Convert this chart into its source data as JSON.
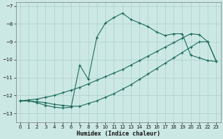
{
  "xlabel": "Humidex (Indice chaleur)",
  "xlim": [
    -0.5,
    23.5
  ],
  "ylim": [
    -13.5,
    -6.8
  ],
  "yticks": [
    -13,
    -12,
    -11,
    -10,
    -9,
    -8,
    -7
  ],
  "xticks": [
    0,
    1,
    2,
    3,
    4,
    5,
    6,
    7,
    8,
    9,
    10,
    11,
    12,
    13,
    14,
    15,
    16,
    17,
    18,
    19,
    20,
    21,
    22,
    23
  ],
  "bg_color": "#cce8e5",
  "grid_color": "#aacfcc",
  "line_color": "#1a6b5a",
  "line1_x": [
    0,
    1,
    2,
    3,
    4,
    5,
    6,
    7,
    8,
    9,
    10,
    11,
    12,
    13,
    14,
    15,
    16,
    17,
    18,
    19,
    20,
    21,
    22,
    23
  ],
  "line1_y": [
    -12.3,
    -12.3,
    -12.4,
    -12.55,
    -12.65,
    -12.7,
    -12.65,
    -10.3,
    -11.1,
    -8.75,
    -7.95,
    -7.65,
    -7.4,
    -7.75,
    -7.95,
    -8.15,
    -8.45,
    -8.65,
    -8.55,
    -8.55,
    -9.75,
    -9.9,
    -10.05,
    -10.1
  ],
  "line2_x": [
    0,
    1,
    2,
    3,
    4,
    5,
    6,
    7,
    8,
    9,
    10,
    11,
    12,
    13,
    14,
    15,
    16,
    17,
    18,
    19,
    20,
    21,
    22,
    23
  ],
  "line2_y": [
    -12.3,
    -12.25,
    -12.2,
    -12.1,
    -12.0,
    -11.85,
    -11.7,
    -11.55,
    -11.35,
    -11.15,
    -10.95,
    -10.75,
    -10.55,
    -10.3,
    -10.05,
    -9.8,
    -9.55,
    -9.3,
    -9.05,
    -8.8,
    -8.55,
    -8.6,
    -9.0,
    -10.1
  ],
  "line3_x": [
    0,
    1,
    2,
    3,
    4,
    5,
    6,
    7,
    8,
    9,
    10,
    11,
    12,
    13,
    14,
    15,
    16,
    17,
    18,
    19,
    20,
    21,
    22,
    23
  ],
  "line3_y": [
    -12.3,
    -12.3,
    -12.35,
    -12.4,
    -12.5,
    -12.55,
    -12.6,
    -12.6,
    -12.45,
    -12.3,
    -12.1,
    -11.9,
    -11.65,
    -11.4,
    -11.1,
    -10.8,
    -10.5,
    -10.2,
    -9.9,
    -9.6,
    -9.3,
    -9.0,
    -9.0,
    -10.1
  ]
}
